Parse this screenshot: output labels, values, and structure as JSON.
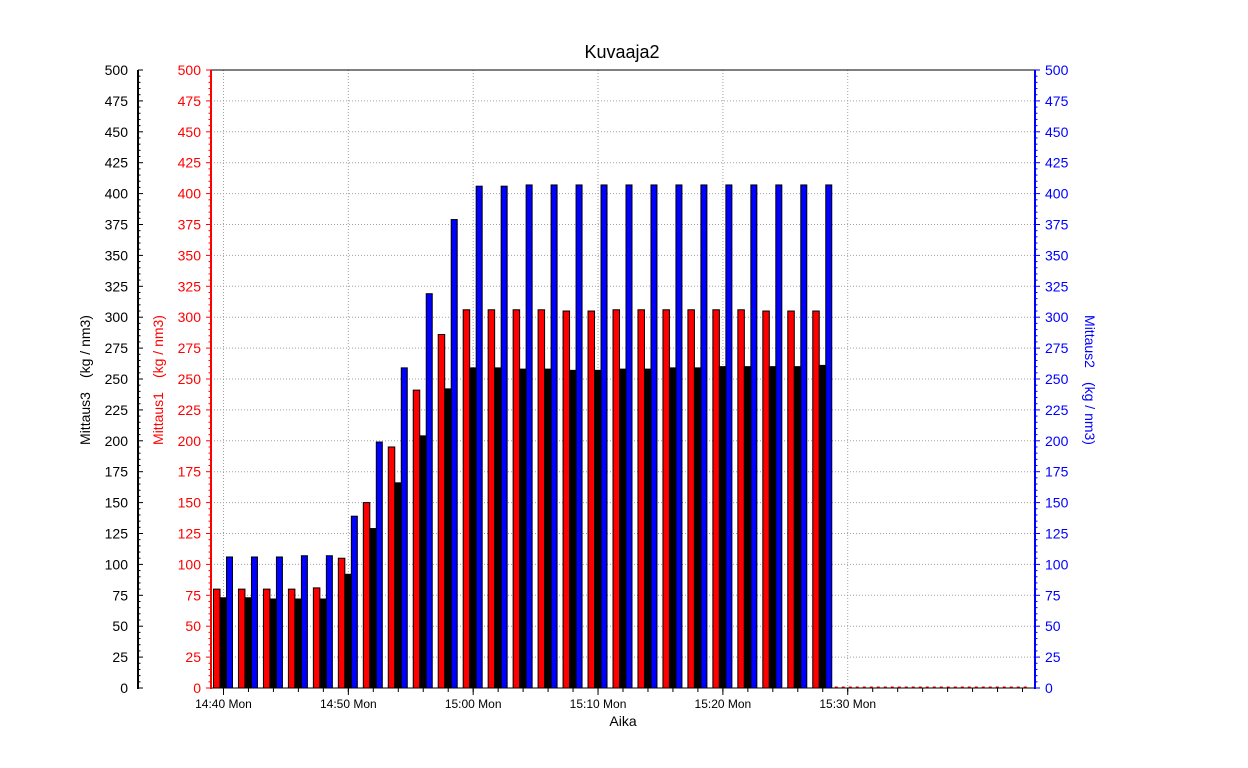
{
  "chart_data": {
    "type": "bar",
    "title": "Kuvaaja2",
    "xlabel": "Aika",
    "x_tick_labels": [
      "14:40 Mon",
      "14:50 Mon",
      "15:00 Mon",
      "15:10 Mon",
      "15:20 Mon",
      "15:30 Mon"
    ],
    "x_tick_values": [
      "14:40",
      "14:50",
      "15:00",
      "15:10",
      "15:20",
      "15:30"
    ],
    "x_range": [
      "14:39",
      "15:45"
    ],
    "x": [
      "14:40",
      "14:42",
      "14:44",
      "14:46",
      "14:48",
      "14:50",
      "14:52",
      "14:54",
      "14:56",
      "14:58",
      "15:00",
      "15:02",
      "15:04",
      "15:06",
      "15:08",
      "15:10",
      "15:12",
      "15:14",
      "15:16",
      "15:18",
      "15:20",
      "15:22",
      "15:24",
      "15:26",
      "15:28"
    ],
    "y_axes": [
      {
        "id": "mittaus3",
        "label_name": "Mittaus3",
        "label_unit": "(kg / nm3)",
        "side": "left-outer",
        "color": "#000000",
        "ylim": [
          0,
          500
        ]
      },
      {
        "id": "mittaus1",
        "label_name": "Mittaus1",
        "label_unit": "(kg / nm3)",
        "side": "left-inner",
        "color": "#ff0000",
        "ylim": [
          0,
          500
        ]
      },
      {
        "id": "mittaus2",
        "label_name": "Mittaus2",
        "label_unit": "(kg / nm3)",
        "side": "right",
        "color": "#0000ff",
        "ylim": [
          0,
          500
        ]
      }
    ],
    "y_ticks": [
      0,
      25,
      50,
      75,
      100,
      125,
      150,
      175,
      200,
      225,
      250,
      275,
      300,
      325,
      350,
      375,
      400,
      425,
      450,
      475,
      500
    ],
    "grid": true,
    "series": [
      {
        "name": "Mittaus1",
        "color": "#ff0000",
        "values": [
          80,
          80,
          80,
          80,
          81,
          105,
          150,
          195,
          241,
          286,
          306,
          306,
          306,
          306,
          305,
          305,
          306,
          306,
          306,
          306,
          306,
          306,
          305,
          305,
          305
        ]
      },
      {
        "name": "Mittaus2",
        "color": "#0000ff",
        "values": [
          106,
          106,
          106,
          107,
          107,
          139,
          199,
          259,
          319,
          379,
          406,
          406,
          407,
          407,
          407,
          407,
          407,
          407,
          407,
          407,
          407,
          407,
          407,
          407,
          407
        ]
      },
      {
        "name": "Mittaus3",
        "color": "#000000",
        "values": [
          73,
          73,
          72,
          72,
          72,
          92,
          129,
          166,
          204,
          242,
          259,
          259,
          258,
          258,
          257,
          257,
          258,
          258,
          259,
          259,
          260,
          260,
          260,
          260,
          261
        ]
      }
    ]
  }
}
